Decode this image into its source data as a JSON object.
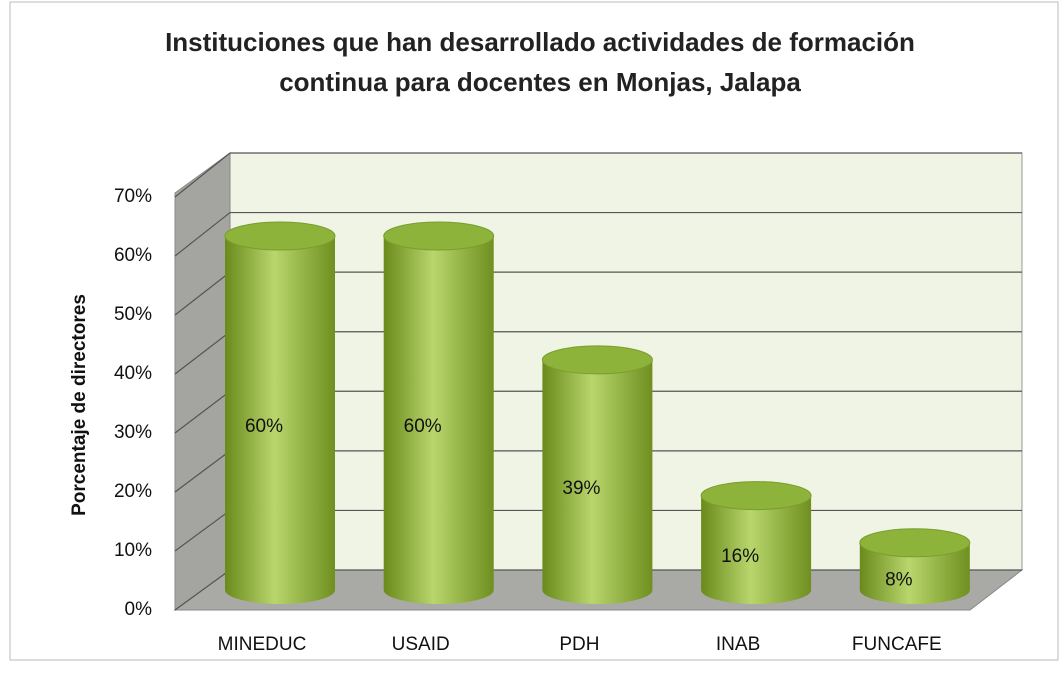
{
  "chart_data": {
    "type": "bar3d",
    "title": "Instituciones que han desarrollado actividades de formación continua para docentes en Monjas, Jalapa",
    "y_label": "Porcentaje de directores",
    "categories": [
      "MINEDUC",
      "USAID",
      "PDH",
      "INAB",
      "FUNCAFE"
    ],
    "values": [
      60,
      60,
      39,
      16,
      8
    ],
    "value_labels": [
      "60%",
      "60%",
      "39%",
      "16%",
      "8%"
    ],
    "color": "#8db33a",
    "ylim": [
      0,
      70
    ],
    "yticks": [
      {
        "value": 0,
        "label": "0%"
      },
      {
        "value": 10,
        "label": "10%"
      },
      {
        "value": 20,
        "label": "20%"
      },
      {
        "value": 30,
        "label": "30%"
      },
      {
        "value": 40,
        "label": "40%"
      },
      {
        "value": 50,
        "label": "50%"
      },
      {
        "value": 60,
        "label": "60%"
      },
      {
        "value": 70,
        "label": "70%"
      }
    ],
    "grid": true
  }
}
